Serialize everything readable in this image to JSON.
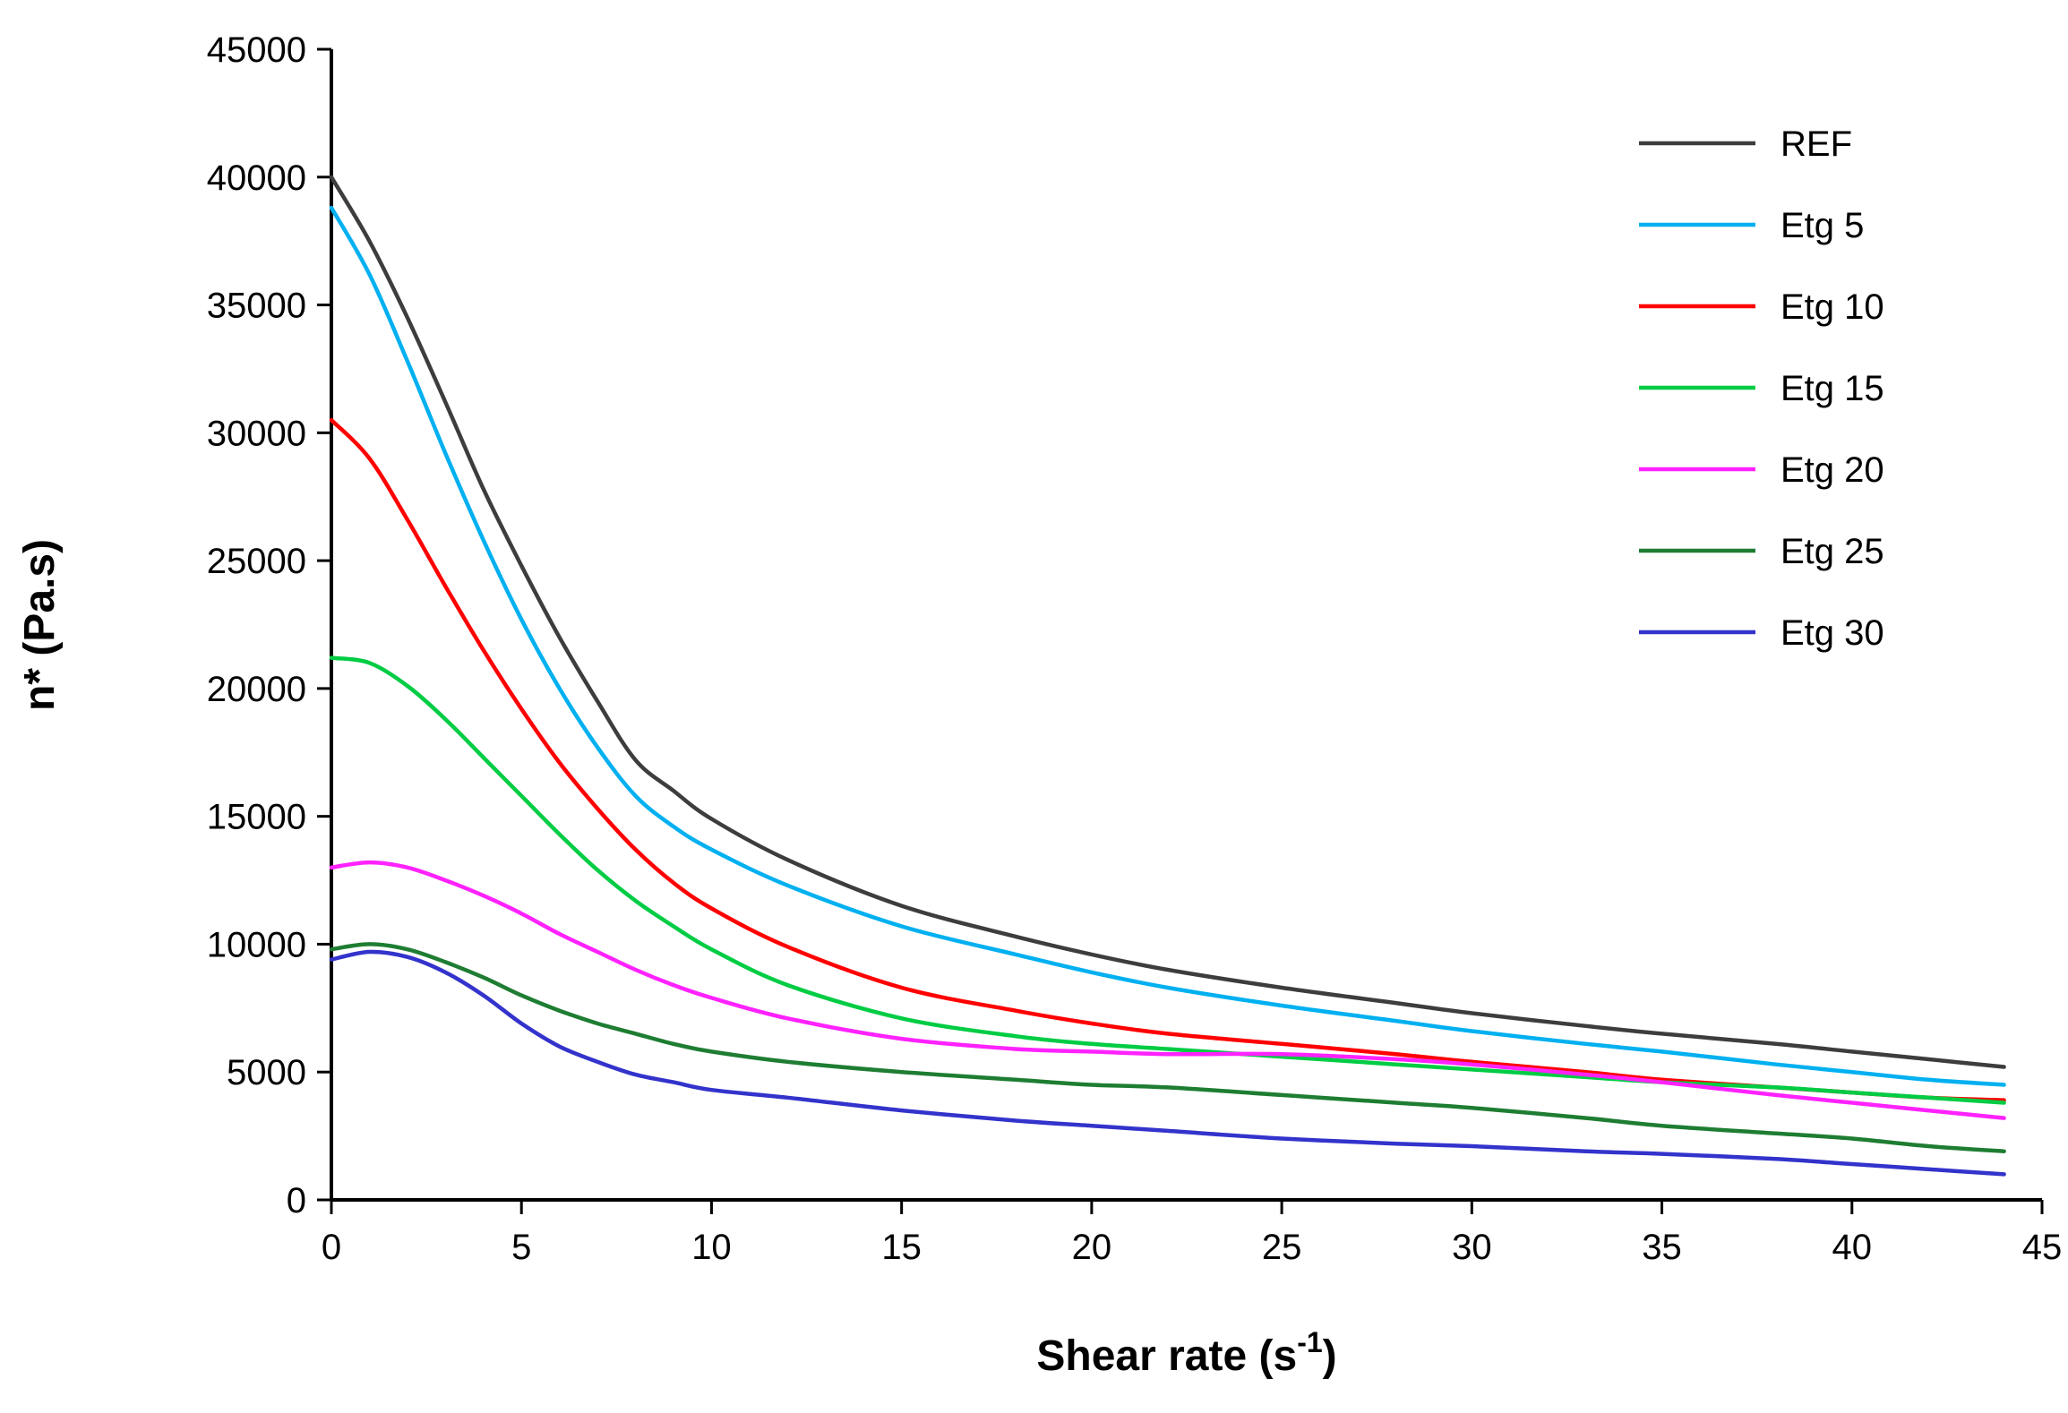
{
  "chart_data": {
    "type": "line",
    "title": "",
    "xlabel": {
      "main": "Shear rate (s",
      "sup": "-1",
      "end": ")"
    },
    "ylabel": "n* (Pa.s)",
    "xlim": [
      0,
      45
    ],
    "ylim": [
      0,
      45000
    ],
    "xticks": [
      0,
      5,
      10,
      15,
      20,
      25,
      30,
      35,
      40,
      45
    ],
    "yticks": [
      0,
      5000,
      10000,
      15000,
      20000,
      25000,
      30000,
      35000,
      40000,
      45000
    ],
    "grid": false,
    "legend_position": "top-right",
    "axis_color": "#000000",
    "background": "#ffffff",
    "x": [
      0,
      1,
      2,
      3,
      4,
      5,
      6,
      7,
      8,
      9,
      10,
      12,
      15,
      18,
      20,
      22,
      25,
      28,
      30,
      33,
      35,
      38,
      40,
      42,
      44
    ],
    "series": [
      {
        "name": "REF",
        "color": "#3d3d3d",
        "values": [
          40000,
          37500,
          34500,
          31200,
          27800,
          24800,
          22000,
          19500,
          17200,
          16000,
          14900,
          13300,
          11500,
          10300,
          9600,
          9000,
          8300,
          7700,
          7300,
          6800,
          6500,
          6100,
          5800,
          5500,
          5200
        ]
      },
      {
        "name": "Etg 5",
        "color": "#00b0f0",
        "values": [
          38800,
          36200,
          32800,
          29200,
          25800,
          22700,
          20000,
          17700,
          15800,
          14600,
          13700,
          12300,
          10700,
          9600,
          8900,
          8300,
          7600,
          7000,
          6600,
          6100,
          5800,
          5300,
          5000,
          4700,
          4500
        ]
      },
      {
        "name": "Etg 10",
        "color": "#ff0000",
        "values": [
          30500,
          29000,
          26600,
          24000,
          21500,
          19200,
          17100,
          15300,
          13700,
          12400,
          11400,
          9900,
          8300,
          7400,
          6900,
          6500,
          6100,
          5700,
          5400,
          5000,
          4700,
          4400,
          4200,
          4000,
          3900
        ]
      },
      {
        "name": "Etg 15",
        "color": "#00cc44",
        "values": [
          21200,
          21000,
          20100,
          18800,
          17300,
          15800,
          14300,
          12900,
          11700,
          10700,
          9800,
          8400,
          7100,
          6400,
          6100,
          5900,
          5600,
          5300,
          5100,
          4800,
          4600,
          4400,
          4200,
          4000,
          3800
        ]
      },
      {
        "name": "Etg 20",
        "color": "#ff22ff",
        "values": [
          13000,
          13200,
          13000,
          12500,
          11900,
          11200,
          10400,
          9700,
          9000,
          8400,
          7900,
          7100,
          6300,
          5900,
          5800,
          5700,
          5700,
          5500,
          5300,
          4900,
          4600,
          4100,
          3800,
          3500,
          3200
        ]
      },
      {
        "name": "Etg 25",
        "color": "#1e7d32",
        "values": [
          9800,
          10000,
          9800,
          9300,
          8700,
          8000,
          7400,
          6900,
          6500,
          6100,
          5800,
          5400,
          5000,
          4700,
          4500,
          4400,
          4100,
          3800,
          3600,
          3200,
          2900,
          2600,
          2400,
          2100,
          1900
        ]
      },
      {
        "name": "Etg 30",
        "color": "#3333cc",
        "values": [
          9400,
          9700,
          9500,
          8900,
          8000,
          6900,
          6000,
          5400,
          4900,
          4600,
          4300,
          4000,
          3500,
          3100,
          2900,
          2700,
          2400,
          2200,
          2100,
          1900,
          1800,
          1600,
          1400,
          1200,
          1000
        ]
      }
    ]
  }
}
